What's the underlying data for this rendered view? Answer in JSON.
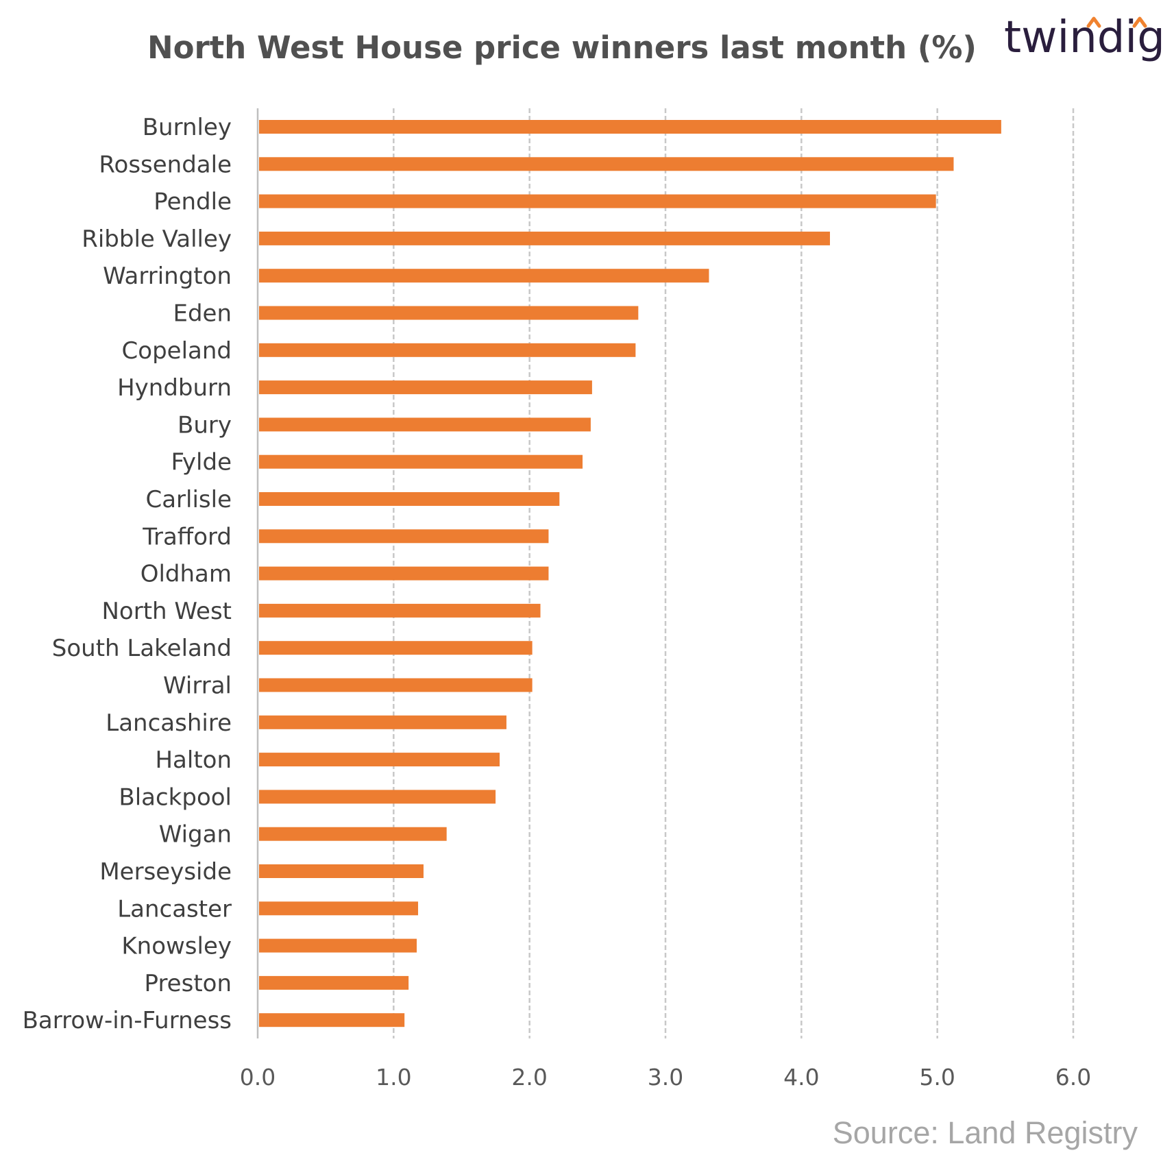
{
  "logo": {
    "text": "twindig",
    "accent_color": "#f0822f"
  },
  "source": "Source: Land Registry",
  "chart_data": {
    "type": "bar",
    "orientation": "horizontal",
    "title": "North West House price winners last month (%)",
    "xlabel": "",
    "ylabel": "",
    "xlim": [
      0,
      6
    ],
    "xticks": [
      "0.0",
      "1.0",
      "2.0",
      "3.0",
      "4.0",
      "5.0",
      "6.0"
    ],
    "grid": "vertical-dashed",
    "bar_color": "#ed7d31",
    "categories": [
      "Burnley",
      "Rossendale",
      "Pendle",
      "Ribble Valley",
      "Warrington",
      "Eden",
      "Copeland",
      "Hyndburn",
      "Bury",
      "Fylde",
      "Carlisle",
      "Trafford",
      "Oldham",
      "North West",
      "South Lakeland",
      "Wirral",
      "Lancashire",
      "Halton",
      "Blackpool",
      "Wigan",
      "Merseyside",
      "Lancaster",
      "Knowsley",
      "Preston",
      "Barrow-in-Furness"
    ],
    "values": [
      5.47,
      5.12,
      4.99,
      4.21,
      3.32,
      2.8,
      2.78,
      2.46,
      2.45,
      2.39,
      2.22,
      2.14,
      2.14,
      2.08,
      2.02,
      2.02,
      1.83,
      1.78,
      1.75,
      1.39,
      1.22,
      1.18,
      1.17,
      1.11,
      1.08
    ]
  }
}
